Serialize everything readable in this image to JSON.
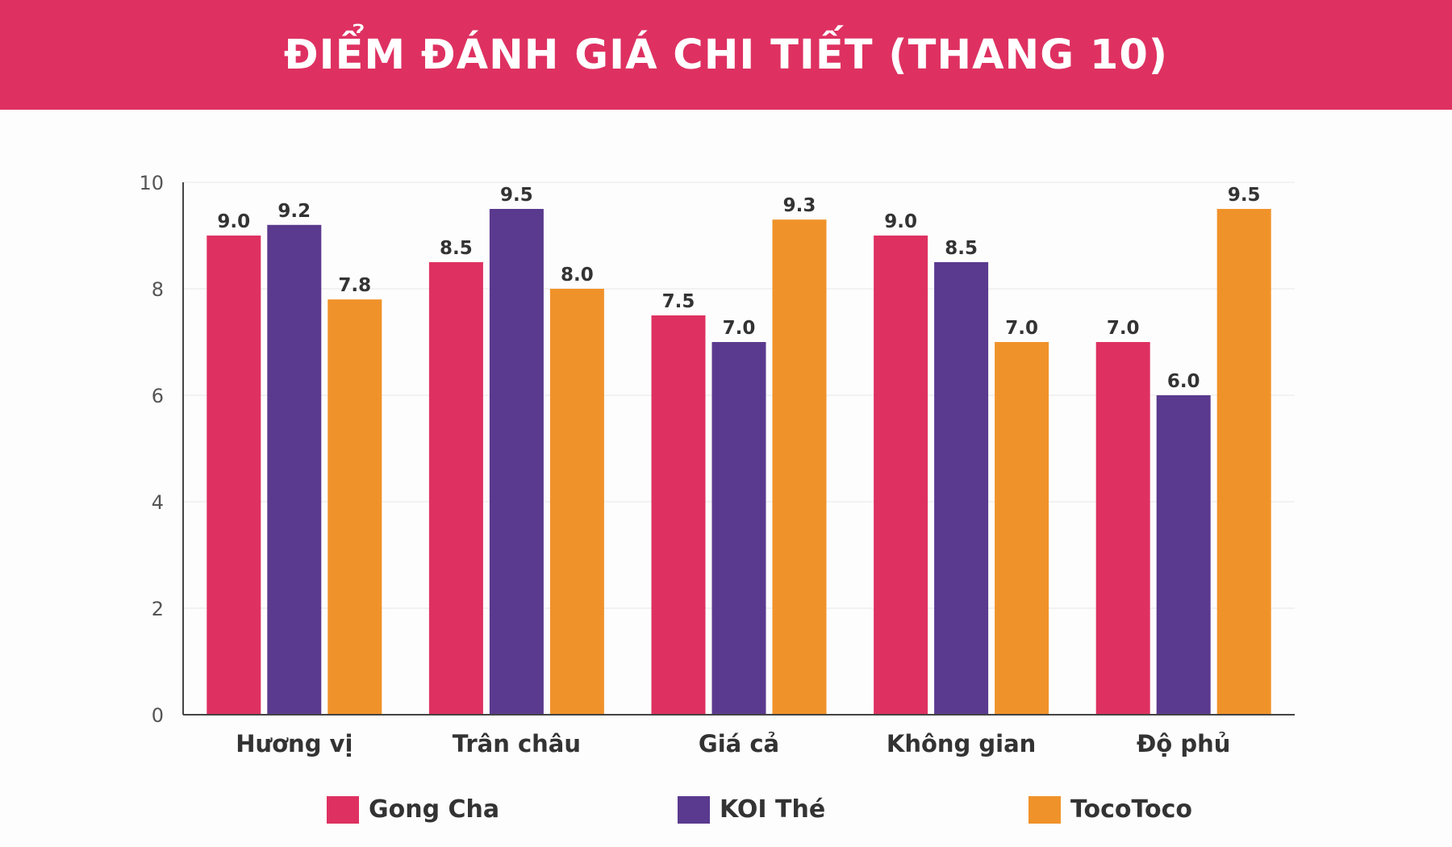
{
  "colors": {
    "header_bg": "#de3161",
    "gong_cha": "#de3161",
    "koi_the": "#5a3a8e",
    "tocotoco": "#f0922a"
  },
  "chart_data": {
    "type": "bar",
    "title": "ĐIỂM ĐÁNH GIÁ CHI TIẾT (THANG 10)",
    "xlabel": "",
    "ylabel": "",
    "ylim": [
      0,
      10
    ],
    "yticks": [
      "0",
      "2",
      "4",
      "6",
      "8",
      "10"
    ],
    "grid": true,
    "legend_position": "bottom",
    "categories": [
      "Hương vị",
      "Trân châu",
      "Giá cả",
      "Không gian",
      "Độ phủ"
    ],
    "series": [
      {
        "name": "Gong Cha",
        "color": "#de3161",
        "values": [
          9.0,
          8.5,
          7.5,
          9.0,
          7.0
        ],
        "labels": [
          "9.0",
          "8.5",
          "7.5",
          "9.0",
          "7.0"
        ]
      },
      {
        "name": "KOI Thé",
        "color": "#5a3a8e",
        "values": [
          9.2,
          9.5,
          7.0,
          8.5,
          6.0
        ],
        "labels": [
          "9.2",
          "9.5",
          "7.0",
          "8.5",
          "6.0"
        ]
      },
      {
        "name": "TocoToco",
        "color": "#f0922a",
        "values": [
          7.8,
          8.0,
          9.3,
          7.0,
          9.5
        ],
        "labels": [
          "7.8",
          "8.0",
          "9.3",
          "7.0",
          "9.5"
        ]
      }
    ]
  }
}
